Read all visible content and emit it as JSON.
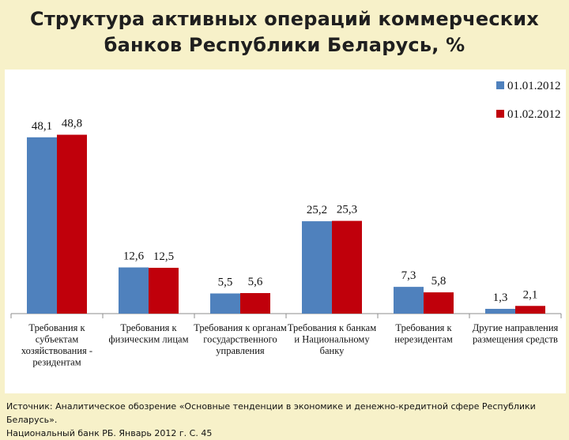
{
  "title": {
    "line1": "Структура активных операций коммерческих",
    "line2": "банков Республики Беларусь, %"
  },
  "source": {
    "line1": "Источник: Аналитическое обозрение «Основные тенденции в экономике и денежно-кредитной сфере Республики Беларусь».",
    "line2": "Национальный банк РБ. Январь 2012 г. С. 45"
  },
  "colors": {
    "background": "#f7f1c9",
    "series1": "#4f81bd",
    "series2": "#c0000b"
  },
  "chart_data": {
    "type": "bar",
    "title": "Структура активных операций коммерческих банков Республики Беларусь, %",
    "xlabel": "",
    "ylabel": "",
    "ylim": [
      0,
      50
    ],
    "grid": false,
    "legend": "top-right",
    "categories": [
      [
        "Требования к",
        "субъектам",
        "хозяйствования -",
        "резидентам"
      ],
      [
        "Требования к",
        "физическим лицам"
      ],
      [
        "Требования к органам",
        "государственного",
        "управления"
      ],
      [
        "Требования к банкам",
        "и Национальному",
        "банку"
      ],
      [
        "Требования к",
        "нерезидентам"
      ],
      [
        "Другие направления",
        "размещения средств"
      ]
    ],
    "series": [
      {
        "name": "01.01.2012",
        "values": [
          48.1,
          12.6,
          5.5,
          25.2,
          7.3,
          1.3
        ],
        "labels": [
          "48,1",
          "12,6",
          "5,5",
          "25,2",
          "7,3",
          "1,3"
        ]
      },
      {
        "name": "01.02.2012",
        "values": [
          48.8,
          12.5,
          5.6,
          25.3,
          5.8,
          2.1
        ],
        "labels": [
          "48,8",
          "12,5",
          "5,6",
          "25,3",
          "5,8",
          "2,1"
        ]
      }
    ]
  }
}
